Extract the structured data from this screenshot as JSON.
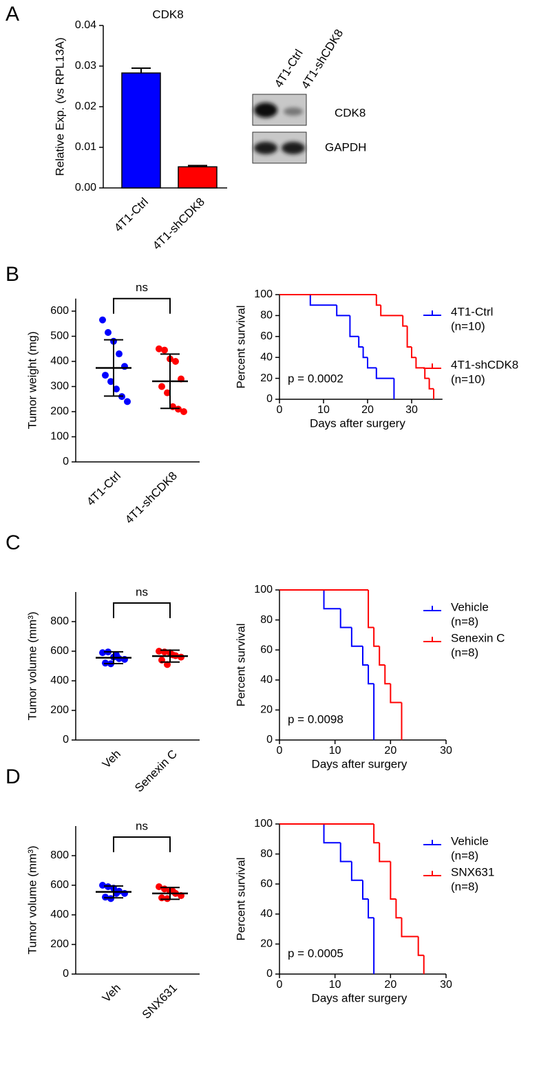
{
  "panels": [
    "A",
    "B",
    "C",
    "D"
  ],
  "western_blot": {
    "lanes": [
      "4T1-Ctrl",
      "4T1-shCDK8"
    ],
    "bands": [
      "CDK8",
      "GAPDH"
    ]
  },
  "chart_data": [
    {
      "type": "bar",
      "title": "CDK8",
      "ylabel": "Relative Exp. (vs RPL13A)",
      "categories": [
        "4T1-Ctrl",
        "4T1-shCDK8"
      ],
      "values": [
        0.0283,
        0.0052
      ],
      "errors": [
        0.0012,
        0.0003
      ],
      "colors": [
        "#0000ff",
        "#ff0000"
      ],
      "ylim": [
        0,
        0.04
      ],
      "yticks": [
        {
          "value": 0,
          "label": "0.00"
        },
        0.01,
        0.02,
        0.03,
        0.04
      ]
    },
    {
      "type": "strip",
      "ylabel": "Tumor weight (mg)",
      "categories": [
        "4T1-Ctrl",
        "4T1-shCDK8"
      ],
      "colors": [
        "#0000ff",
        "#ff0000"
      ],
      "values": [
        [
          565,
          515,
          480,
          430,
          380,
          345,
          320,
          290,
          260,
          240
        ],
        [
          450,
          445,
          410,
          400,
          330,
          300,
          275,
          220,
          210,
          200
        ]
      ],
      "means": [
        374,
        321
      ],
      "sds": [
        112,
        108
      ],
      "annotation": "ns",
      "ylim": [
        0,
        650
      ],
      "yticks": [
        0,
        100,
        200,
        300,
        400,
        500,
        600
      ]
    },
    {
      "type": "survival",
      "xlabel": "Days after surgery",
      "ylabel": "Percent survival",
      "annotation": "p = 0.0002",
      "xlim": [
        0,
        37
      ],
      "xticks": [
        0,
        10,
        20,
        30
      ],
      "ylim": [
        0,
        100
      ],
      "yticks": [
        0,
        20,
        40,
        60,
        80,
        100
      ],
      "series": [
        {
          "name": "4T1-Ctrl",
          "n": "(n=10)",
          "color": "#0000ff",
          "x": [
            0,
            7,
            13,
            16,
            18,
            19,
            20,
            22,
            26
          ],
          "values": [
            100,
            90,
            80,
            60,
            50,
            40,
            30,
            20,
            0
          ]
        },
        {
          "name": "4T1-shCDK8",
          "n": "(n=10)",
          "color": "#ff0000",
          "x": [
            0,
            22,
            23,
            28,
            29,
            30,
            31,
            33,
            34,
            35
          ],
          "values": [
            100,
            90,
            80,
            70,
            50,
            40,
            30,
            20,
            10,
            0
          ]
        }
      ]
    },
    {
      "type": "strip",
      "ylabel": "Tumor volume (mm³)",
      "categories": [
        "Veh",
        "Senexin C"
      ],
      "colors": [
        "#0000ff",
        "#ff0000"
      ],
      "values": [
        [
          590,
          595,
          560,
          550,
          545,
          520,
          515,
          575
        ],
        [
          600,
          595,
          590,
          570,
          560,
          540,
          510,
          575
        ]
      ],
      "means": [
        556,
        567
      ],
      "sds": [
        40,
        40
      ],
      "annotation": "ns",
      "ylim": [
        0,
        1000
      ],
      "yticks": [
        0,
        200,
        400,
        600,
        800
      ]
    },
    {
      "type": "survival",
      "xlabel": "Days after surgery",
      "ylabel": "Percent survival",
      "annotation": "p = 0.0098",
      "xlim": [
        0,
        30
      ],
      "xticks": [
        0,
        10,
        20,
        30
      ],
      "ylim": [
        0,
        100
      ],
      "yticks": [
        0,
        20,
        40,
        60,
        80,
        100
      ],
      "series": [
        {
          "name": "Vehicle",
          "n": "(n=8)",
          "color": "#0000ff",
          "x": [
            0,
            8,
            11,
            13,
            15,
            16,
            17
          ],
          "values": [
            100,
            87.5,
            75,
            62.5,
            50,
            37.5,
            0
          ]
        },
        {
          "name": "Senexin C",
          "n": "(n=8)",
          "color": "#ff0000",
          "x": [
            0,
            16,
            17,
            18,
            19,
            20,
            22
          ],
          "values": [
            100,
            75,
            62.5,
            50,
            37.5,
            25,
            0
          ]
        }
      ]
    },
    {
      "type": "strip",
      "ylabel": "Tumor volume (mm³)",
      "categories": [
        "Veh",
        "SNX631"
      ],
      "colors": [
        "#0000ff",
        "#ff0000"
      ],
      "values": [
        [
          600,
          590,
          580,
          560,
          545,
          520,
          510,
          545
        ],
        [
          590,
          575,
          560,
          545,
          530,
          515,
          510,
          560
        ]
      ],
      "means": [
        555,
        545
      ],
      "sds": [
        40,
        40
      ],
      "annotation": "ns",
      "ylim": [
        0,
        1000
      ],
      "yticks": [
        0,
        200,
        400,
        600,
        800
      ]
    },
    {
      "type": "survival",
      "xlabel": "Days after surgery",
      "ylabel": "Percent survival",
      "annotation": "p = 0.0005",
      "xlim": [
        0,
        30
      ],
      "xticks": [
        0,
        10,
        20,
        30
      ],
      "ylim": [
        0,
        100
      ],
      "yticks": [
        0,
        20,
        40,
        60,
        80,
        100
      ],
      "series": [
        {
          "name": "Vehicle",
          "n": "(n=8)",
          "color": "#0000ff",
          "x": [
            0,
            8,
            11,
            13,
            15,
            16,
            17
          ],
          "values": [
            100,
            87.5,
            75,
            62.5,
            50,
            37.5,
            0
          ]
        },
        {
          "name": "SNX631",
          "n": "(n=8)",
          "color": "#ff0000",
          "x": [
            0,
            17,
            18,
            20,
            21,
            22,
            25,
            26
          ],
          "values": [
            100,
            87.5,
            75,
            50,
            37.5,
            25,
            12.5,
            0
          ]
        }
      ]
    }
  ]
}
